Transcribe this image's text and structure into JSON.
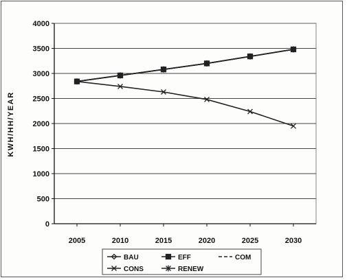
{
  "chart_data": {
    "type": "line",
    "title": "",
    "xlabel": "",
    "ylabel": "KWH/HH/YEAR",
    "x": [
      "2005",
      "2010",
      "2015",
      "2020",
      "2025",
      "2030"
    ],
    "ylim": [
      0,
      4000
    ],
    "yticks": [
      0,
      500,
      1000,
      1500,
      2000,
      2500,
      3000,
      3500,
      4000
    ],
    "grid": "horizontal",
    "legend_position": "bottom",
    "series": [
      {
        "name": "BAU",
        "values": [
          2840,
          2960,
          3080,
          3200,
          3340,
          3480
        ],
        "marker": "diamond",
        "dash": "solid"
      },
      {
        "name": "EFF",
        "values": [
          2840,
          2960,
          3080,
          3200,
          3340,
          3480
        ],
        "marker": "square",
        "dash": "solid"
      },
      {
        "name": "COM",
        "values": [
          2840,
          2960,
          3080,
          3200,
          3340,
          3480
        ],
        "marker": "none",
        "dash": "dashed"
      },
      {
        "name": "CONS",
        "values": [
          2840,
          2740,
          2630,
          2480,
          2240,
          1950
        ],
        "marker": "cross",
        "dash": "solid"
      },
      {
        "name": "RENEW",
        "values": [
          2840,
          2960,
          3080,
          3200,
          3340,
          3480
        ],
        "marker": "asterisk",
        "dash": "solid"
      }
    ],
    "colors": {
      "line": "#222222",
      "grid": "#444444",
      "frame": "#555555",
      "background": "#fdfdfb"
    }
  }
}
